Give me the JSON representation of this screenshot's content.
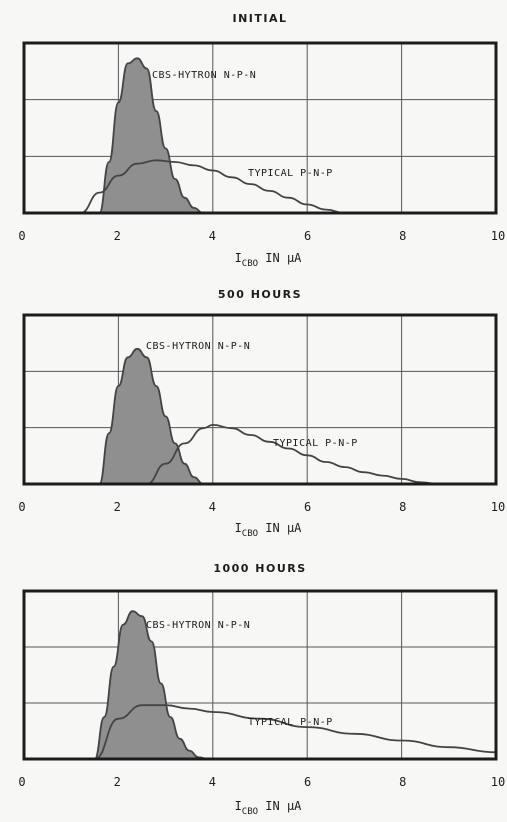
{
  "chart_data": [
    {
      "type": "area",
      "title": "INITIAL",
      "xlabel_main": "I",
      "xlabel_sub": "CBO",
      "xlabel_rest": " IN μA",
      "x_ticks": [
        "0",
        "2",
        "4",
        "6",
        "8",
        "10"
      ],
      "xlim": [
        0,
        10
      ],
      "ylim": [
        0,
        1
      ],
      "grid": true,
      "series": [
        {
          "name": "CBS-HYTRON N-P-N",
          "filled": true,
          "x": [
            1.6,
            1.8,
            2.0,
            2.2,
            2.4,
            2.6,
            2.8,
            3.0,
            3.2,
            3.4,
            3.6,
            3.8
          ],
          "y": [
            0.0,
            0.3,
            0.65,
            0.88,
            0.91,
            0.85,
            0.6,
            0.38,
            0.2,
            0.09,
            0.03,
            0.0
          ]
        },
        {
          "name": "TYPICAL P-N-P",
          "filled": false,
          "x": [
            1.2,
            1.6,
            2.0,
            2.4,
            2.8,
            3.2,
            3.6,
            4.0,
            4.4,
            4.8,
            5.2,
            5.6,
            6.0,
            6.4,
            6.8
          ],
          "y": [
            0.0,
            0.12,
            0.22,
            0.29,
            0.31,
            0.3,
            0.28,
            0.25,
            0.21,
            0.17,
            0.13,
            0.09,
            0.05,
            0.02,
            0.0
          ]
        }
      ]
    },
    {
      "type": "area",
      "title": "500 HOURS",
      "xlabel_main": "I",
      "xlabel_sub": "CBO",
      "xlabel_rest": " IN μA",
      "x_ticks": [
        "0",
        "2",
        "4",
        "6",
        "8",
        "10"
      ],
      "xlim": [
        0,
        10
      ],
      "ylim": [
        0,
        1
      ],
      "grid": true,
      "series": [
        {
          "name": "CBS-HYTRON N-P-N",
          "filled": true,
          "x": [
            1.6,
            1.8,
            2.0,
            2.2,
            2.4,
            2.6,
            2.8,
            3.0,
            3.2,
            3.4,
            3.6,
            3.8
          ],
          "y": [
            0.0,
            0.3,
            0.58,
            0.75,
            0.8,
            0.75,
            0.58,
            0.4,
            0.24,
            0.12,
            0.04,
            0.0
          ]
        },
        {
          "name": "TYPICAL P-N-P",
          "filled": false,
          "x": [
            2.6,
            3.0,
            3.4,
            3.8,
            4.0,
            4.4,
            4.8,
            5.2,
            5.6,
            6.0,
            6.4,
            6.8,
            7.2,
            7.6,
            8.0,
            8.4,
            8.8
          ],
          "y": [
            0.0,
            0.12,
            0.24,
            0.33,
            0.35,
            0.33,
            0.29,
            0.25,
            0.21,
            0.17,
            0.13,
            0.1,
            0.07,
            0.05,
            0.03,
            0.01,
            0.0
          ]
        }
      ]
    },
    {
      "type": "area",
      "title": "1000 HOURS",
      "xlabel_main": "I",
      "xlabel_sub": "CBO",
      "xlabel_rest": " IN μA",
      "x_ticks": [
        "0",
        "2",
        "4",
        "6",
        "8",
        "10"
      ],
      "xlim": [
        0,
        10
      ],
      "ylim": [
        0,
        1
      ],
      "grid": true,
      "series": [
        {
          "name": "CBS-HYTRON N-P-N",
          "filled": true,
          "x": [
            1.5,
            1.7,
            1.9,
            2.1,
            2.3,
            2.5,
            2.7,
            2.9,
            3.1,
            3.3,
            3.5,
            3.7,
            3.9
          ],
          "y": [
            0.0,
            0.25,
            0.55,
            0.8,
            0.88,
            0.85,
            0.7,
            0.45,
            0.25,
            0.12,
            0.05,
            0.01,
            0.0
          ]
        },
        {
          "name": "TYPICAL P-N-P",
          "filled": false,
          "x": [
            1.5,
            2.0,
            2.5,
            3.0,
            3.5,
            4.0,
            5.0,
            6.0,
            7.0,
            8.0,
            9.0,
            10.0
          ],
          "y": [
            0.0,
            0.24,
            0.32,
            0.32,
            0.3,
            0.28,
            0.24,
            0.19,
            0.15,
            0.11,
            0.07,
            0.04
          ]
        }
      ]
    }
  ],
  "colors": {
    "frame": "#1c1c1c",
    "grid": "#555555",
    "fill": "#8f8f8f",
    "curve": "#444444",
    "background": "#f7f7f5"
  }
}
